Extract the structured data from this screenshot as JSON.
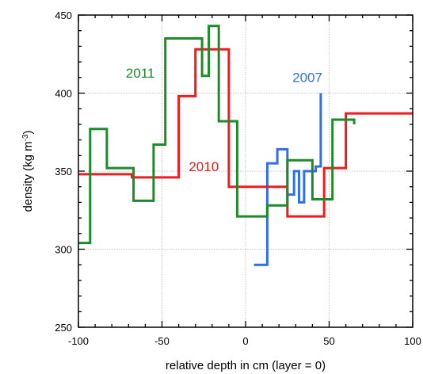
{
  "chart_data": {
    "type": "line",
    "xlabel": "relative depth in cm (layer = 0)",
    "ylabel_main": "density (kg m",
    "ylabel_sup": "-3",
    "ylabel_close": ")",
    "xlim": [
      -100,
      100
    ],
    "ylim": [
      250,
      450
    ],
    "xticks": [
      -100,
      -50,
      0,
      50,
      100
    ],
    "yticks": [
      250,
      300,
      350,
      400,
      450
    ],
    "grid": true,
    "series": [
      {
        "name": "2007",
        "color": "#2f6fe8",
        "label_at": [
          37,
          407
        ],
        "points": [
          [
            5,
            290
          ],
          [
            13,
            290
          ],
          [
            13,
            355
          ],
          [
            19,
            355
          ],
          [
            19,
            364
          ],
          [
            25,
            364
          ],
          [
            25,
            335
          ],
          [
            29,
            335
          ],
          [
            29,
            350
          ],
          [
            32,
            350
          ],
          [
            32,
            330
          ],
          [
            35,
            330
          ],
          [
            35,
            350
          ],
          [
            42,
            350
          ],
          [
            42,
            353
          ],
          [
            45,
            353
          ],
          [
            45,
            400
          ]
        ]
      },
      {
        "name": "2010",
        "color": "#ee1c1c",
        "label_at": [
          -25,
          350
        ],
        "points": [
          [
            -100,
            348
          ],
          [
            -68,
            348
          ],
          [
            -68,
            346
          ],
          [
            -40,
            346
          ],
          [
            -40,
            398
          ],
          [
            -30,
            398
          ],
          [
            -30,
            428
          ],
          [
            -10,
            428
          ],
          [
            -10,
            340
          ],
          [
            25,
            340
          ],
          [
            25,
            321
          ],
          [
            47,
            321
          ],
          [
            47,
            352
          ],
          [
            60,
            352
          ],
          [
            60,
            387
          ],
          [
            100,
            387
          ]
        ]
      },
      {
        "name": "2011",
        "color": "#1e8a2a",
        "label_at": [
          -63,
          410
        ],
        "points": [
          [
            -100,
            304
          ],
          [
            -93,
            304
          ],
          [
            -93,
            377
          ],
          [
            -83,
            377
          ],
          [
            -83,
            352
          ],
          [
            -67,
            352
          ],
          [
            -67,
            331
          ],
          [
            -55,
            331
          ],
          [
            -55,
            367
          ],
          [
            -48,
            367
          ],
          [
            -48,
            435
          ],
          [
            -26,
            435
          ],
          [
            -26,
            411
          ],
          [
            -22,
            411
          ],
          [
            -22,
            443
          ],
          [
            -16,
            443
          ],
          [
            -16,
            382
          ],
          [
            -5,
            382
          ],
          [
            -5,
            321
          ],
          [
            13,
            321
          ],
          [
            13,
            328
          ],
          [
            25,
            328
          ],
          [
            25,
            357
          ],
          [
            40,
            357
          ],
          [
            40,
            332
          ],
          [
            52,
            332
          ],
          [
            52,
            383
          ],
          [
            65,
            383
          ],
          [
            65,
            380
          ]
        ]
      }
    ]
  }
}
